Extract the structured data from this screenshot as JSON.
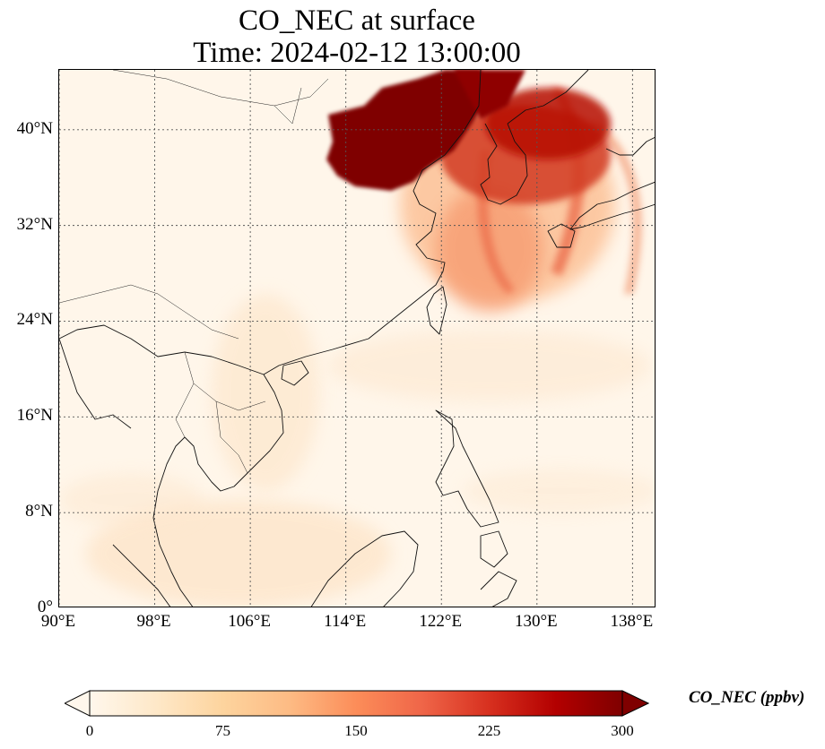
{
  "title": {
    "line1": "CO_NEC at surface",
    "line2": "Time: 2024-02-12 13:00:00"
  },
  "map": {
    "lon_range": [
      90,
      140
    ],
    "lat_range": [
      0,
      45
    ],
    "lon_ticks": [
      90,
      98,
      106,
      114,
      122,
      130,
      138
    ],
    "lat_ticks": [
      0,
      8,
      16,
      24,
      32,
      40
    ],
    "lon_labels": [
      "90°E",
      "98°E",
      "106°E",
      "114°E",
      "122°E",
      "130°E",
      "138°E"
    ],
    "lat_labels": [
      "0°",
      "8°N",
      "16°N",
      "24°N",
      "32°N",
      "40°N"
    ],
    "gridlines": true
  },
  "colorbar": {
    "label": "CO_NEC (ppbv)",
    "min": 0,
    "max": 300,
    "ticks": [
      "0",
      "75",
      "150",
      "225",
      "300"
    ],
    "tick_values": [
      0,
      75,
      150,
      225,
      300
    ],
    "colormap": "OrRd",
    "colors": [
      "#fff7ec",
      "#fee8c8",
      "#fdd49e",
      "#fdbb84",
      "#fc8d59",
      "#ef6548",
      "#d7301f",
      "#b30000",
      "#7f0000"
    ]
  }
}
